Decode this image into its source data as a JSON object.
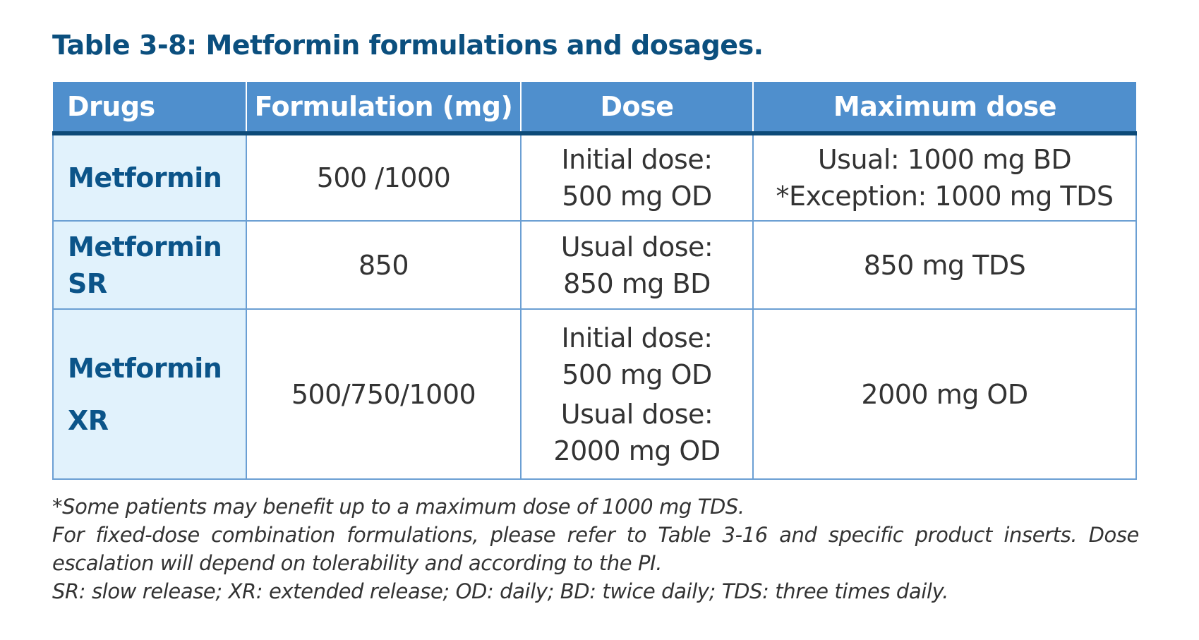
{
  "title": "Table 3-8: Metformin formulations and dosages.",
  "table": {
    "headers": [
      "Drugs",
      "Formulation (mg)",
      "Dose",
      "Maximum dose"
    ],
    "rows": [
      {
        "drug": "Metformin",
        "formulation": "500 /1000",
        "dose": [
          "Initial dose:",
          "500 mg OD"
        ],
        "max": [
          "Usual: 1000 mg BD",
          "*Exception: 1000 mg TDS"
        ]
      },
      {
        "drug": "Metformin SR",
        "formulation": "850",
        "dose": [
          "Usual dose:",
          "850 mg BD"
        ],
        "max": [
          "850 mg TDS"
        ]
      },
      {
        "drug": "Metformin XR",
        "formulation": "500/750/1000",
        "dose": [
          "Initial dose:",
          "500 mg OD",
          "Usual dose:",
          "2000 mg OD"
        ],
        "max": [
          "2000 mg OD"
        ]
      }
    ]
  },
  "notes": [
    "*Some patients may benefit up to a maximum dose of 1000 mg TDS.",
    "For fixed-dose combination formulations, please refer to Table 3-16 and specific product inserts. Dose escalation will depend on tolerability and according to the PI.",
    "SR: slow release; XR: extended release; OD: daily; BD: twice daily; TDS: three times daily."
  ],
  "colors": {
    "header": "#4f8fcd",
    "header_rule": "#0d4a78",
    "drug_bg": "#e1f2fc",
    "drug_text": "#0b5489",
    "title": "#0b4f7e"
  }
}
